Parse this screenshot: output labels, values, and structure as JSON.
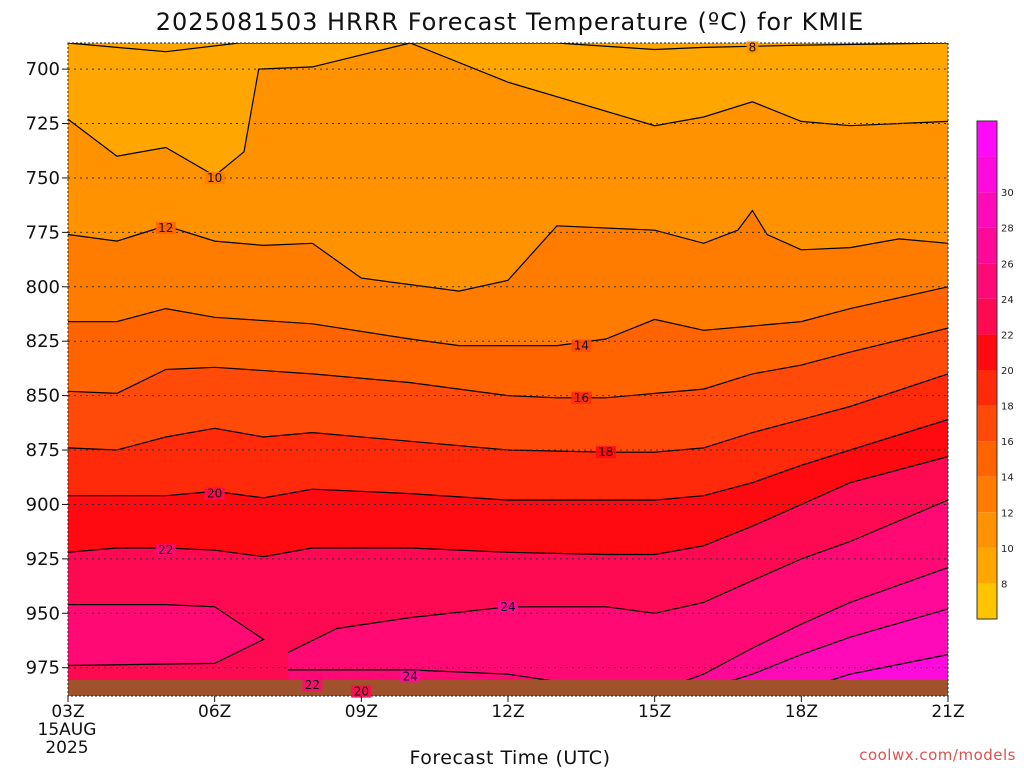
{
  "chart_data": {
    "type": "contour",
    "title": "2025081503 HRRR Forecast Temperature (ºC) for KMIE",
    "xlabel": "Forecast Time (UTC)",
    "credit": "coolwx.com/models",
    "x_ticks": [
      "03Z",
      "06Z",
      "09Z",
      "12Z",
      "15Z",
      "18Z",
      "21Z"
    ],
    "x_first_date": [
      "15AUG",
      "2025"
    ],
    "x_hours": [
      3,
      21
    ],
    "y_ticks": [
      700,
      725,
      750,
      775,
      800,
      825,
      850,
      875,
      900,
      925,
      950,
      975
    ],
    "y_range_hpa": [
      688,
      988
    ],
    "grid": "dotted",
    "colorbar": {
      "ticks": [
        8,
        10,
        12,
        14,
        16,
        18,
        20,
        22,
        24,
        26,
        28,
        30
      ],
      "colors": [
        "#ffc400",
        "#ffa600",
        "#ff9200",
        "#ff7c00",
        "#ff6400",
        "#ff4a0a",
        "#ff2a0a",
        "#ff0a10",
        "#fd0a52",
        "#ff0a74",
        "#ff0a98",
        "#ff0ab8",
        "#ff0adc",
        "#ff0af8"
      ]
    },
    "contours": [
      {
        "level": 8,
        "label": "8",
        "label_at": [
          17.0,
          690
        ],
        "points": [
          [
            3,
            688
          ],
          [
            5,
            692
          ],
          [
            6.5,
            688
          ],
          [
            13,
            688
          ],
          [
            15,
            691
          ],
          [
            16,
            690
          ],
          [
            18,
            689
          ],
          [
            21,
            688
          ]
        ]
      },
      {
        "level": 10,
        "label": "10",
        "label_at": [
          6.0,
          750
        ],
        "points": [
          [
            3,
            723
          ],
          [
            4,
            740
          ],
          [
            5,
            736
          ],
          [
            6,
            749
          ],
          [
            6.6,
            738
          ],
          [
            6.9,
            700
          ],
          [
            8,
            699
          ],
          [
            10,
            688
          ],
          [
            12,
            706
          ],
          [
            15,
            726
          ],
          [
            16,
            722
          ],
          [
            17,
            715
          ],
          [
            18,
            724
          ],
          [
            19,
            726
          ],
          [
            21,
            724
          ]
        ]
      },
      {
        "level": 12,
        "label": "12",
        "label_at": [
          5.0,
          773
        ],
        "points": [
          [
            3,
            776
          ],
          [
            4,
            779
          ],
          [
            5,
            772
          ],
          [
            6,
            779
          ],
          [
            7,
            781
          ],
          [
            8,
            780
          ],
          [
            9,
            796
          ],
          [
            11,
            802
          ],
          [
            12,
            797
          ],
          [
            13,
            772
          ],
          [
            15,
            774
          ],
          [
            16,
            780
          ],
          [
            16.7,
            774
          ],
          [
            17,
            765
          ],
          [
            17.3,
            776
          ],
          [
            18,
            783
          ],
          [
            19,
            782
          ],
          [
            20,
            778
          ],
          [
            21,
            780
          ]
        ]
      },
      {
        "level": 14,
        "label": "14",
        "label_at": [
          13.5,
          827
        ],
        "points": [
          [
            3,
            816
          ],
          [
            4,
            816
          ],
          [
            5,
            810
          ],
          [
            6,
            814
          ],
          [
            8,
            817
          ],
          [
            10,
            824
          ],
          [
            11,
            827
          ],
          [
            12,
            827
          ],
          [
            13,
            827
          ],
          [
            14,
            824
          ],
          [
            15,
            815
          ],
          [
            16,
            820
          ],
          [
            17,
            818
          ],
          [
            18,
            816
          ],
          [
            19,
            810
          ],
          [
            21,
            800
          ]
        ]
      },
      {
        "level": 16,
        "label": "16",
        "label_at": [
          13.5,
          851
        ],
        "points": [
          [
            3,
            848
          ],
          [
            4,
            849
          ],
          [
            5,
            838
          ],
          [
            6,
            837
          ],
          [
            8,
            840
          ],
          [
            10,
            844
          ],
          [
            12,
            850
          ],
          [
            13,
            851
          ],
          [
            14,
            851
          ],
          [
            15,
            849
          ],
          [
            16,
            847
          ],
          [
            17,
            840
          ],
          [
            18,
            836
          ],
          [
            19,
            830
          ],
          [
            21,
            819
          ]
        ]
      },
      {
        "level": 18,
        "label": "18",
        "label_at": [
          14.0,
          876
        ],
        "points": [
          [
            3,
            874
          ],
          [
            4,
            875
          ],
          [
            5,
            869
          ],
          [
            6,
            865
          ],
          [
            7,
            869
          ],
          [
            8,
            867
          ],
          [
            10,
            871
          ],
          [
            12,
            875
          ],
          [
            14,
            876
          ],
          [
            15,
            876
          ],
          [
            16,
            874
          ],
          [
            17,
            867
          ],
          [
            18,
            861
          ],
          [
            19,
            855
          ],
          [
            21,
            840
          ]
        ]
      },
      {
        "level": 18,
        "label": "",
        "label_at": null,
        "points": [
          [
            3,
            872
          ],
          [
            3,
            872
          ]
        ]
      },
      {
        "level": 20,
        "label": "20",
        "label_at": [
          6.0,
          895
        ],
        "points": [
          [
            3,
            896
          ],
          [
            4,
            896
          ],
          [
            5,
            896
          ],
          [
            6,
            894
          ],
          [
            7,
            897
          ],
          [
            8,
            893
          ],
          [
            10,
            895
          ],
          [
            12,
            898
          ],
          [
            14,
            898
          ],
          [
            15,
            898
          ],
          [
            16,
            896
          ],
          [
            17,
            890
          ],
          [
            18,
            882
          ],
          [
            19,
            875
          ],
          [
            21,
            861
          ]
        ]
      },
      {
        "level": 22,
        "label": "22",
        "label_at": [
          5.0,
          921
        ],
        "points": [
          [
            3,
            922
          ],
          [
            4,
            920
          ],
          [
            5,
            920
          ],
          [
            6,
            921
          ],
          [
            7,
            924
          ],
          [
            8,
            920
          ],
          [
            10,
            920
          ],
          [
            12,
            922
          ],
          [
            14,
            923
          ],
          [
            15,
            923
          ],
          [
            16,
            919
          ],
          [
            17,
            910
          ],
          [
            18,
            900
          ],
          [
            19,
            890
          ],
          [
            21,
            878
          ]
        ]
      },
      {
        "level": 24,
        "label": "24",
        "label_at": [
          12.0,
          947
        ],
        "points": [
          [
            3,
            946
          ],
          [
            5,
            946
          ],
          [
            6,
            947
          ],
          [
            7,
            962
          ],
          [
            6,
            973
          ],
          [
            3,
            974
          ]
        ]
      },
      {
        "level": 24,
        "label": "",
        "label_at": null,
        "points": [
          [
            7.5,
            968
          ],
          [
            8.5,
            957
          ],
          [
            10,
            952
          ],
          [
            12,
            947
          ],
          [
            14,
            947
          ],
          [
            15,
            950
          ],
          [
            16,
            945
          ],
          [
            17,
            935
          ],
          [
            18,
            925
          ],
          [
            19,
            917
          ],
          [
            21,
            898
          ]
        ]
      },
      {
        "level": 26,
        "label": "",
        "label_at": null,
        "points": [
          [
            15.5,
            982
          ],
          [
            16,
            978
          ],
          [
            17,
            966
          ],
          [
            18,
            955
          ],
          [
            19,
            945
          ],
          [
            21,
            929
          ]
        ]
      },
      {
        "level": 28,
        "label": "",
        "label_at": null,
        "points": [
          [
            16,
            985
          ],
          [
            17,
            978
          ],
          [
            18,
            969
          ],
          [
            19,
            961
          ],
          [
            21,
            948
          ]
        ]
      },
      {
        "level": 30,
        "label": "",
        "label_at": null,
        "points": [
          [
            18,
            985
          ],
          [
            19,
            978
          ],
          [
            21,
            969
          ]
        ]
      },
      {
        "level": 24,
        "label": "24",
        "label_at": [
          10.0,
          979
        ],
        "points": [
          [
            7.5,
            976
          ],
          [
            10,
            976
          ],
          [
            12,
            978
          ],
          [
            13.5,
            983
          ]
        ]
      },
      {
        "level": 22,
        "label": "22",
        "label_at": [
          8.0,
          983
        ],
        "points": [
          [
            4,
            985
          ],
          [
            8,
            983
          ],
          [
            10,
            983
          ],
          [
            12,
            984
          ]
        ]
      },
      {
        "level": 20,
        "label": "20",
        "label_at": [
          9.0,
          986
        ],
        "points": [
          [
            6,
            985
          ],
          [
            9,
            986
          ],
          [
            10,
            986
          ]
        ]
      }
    ]
  }
}
